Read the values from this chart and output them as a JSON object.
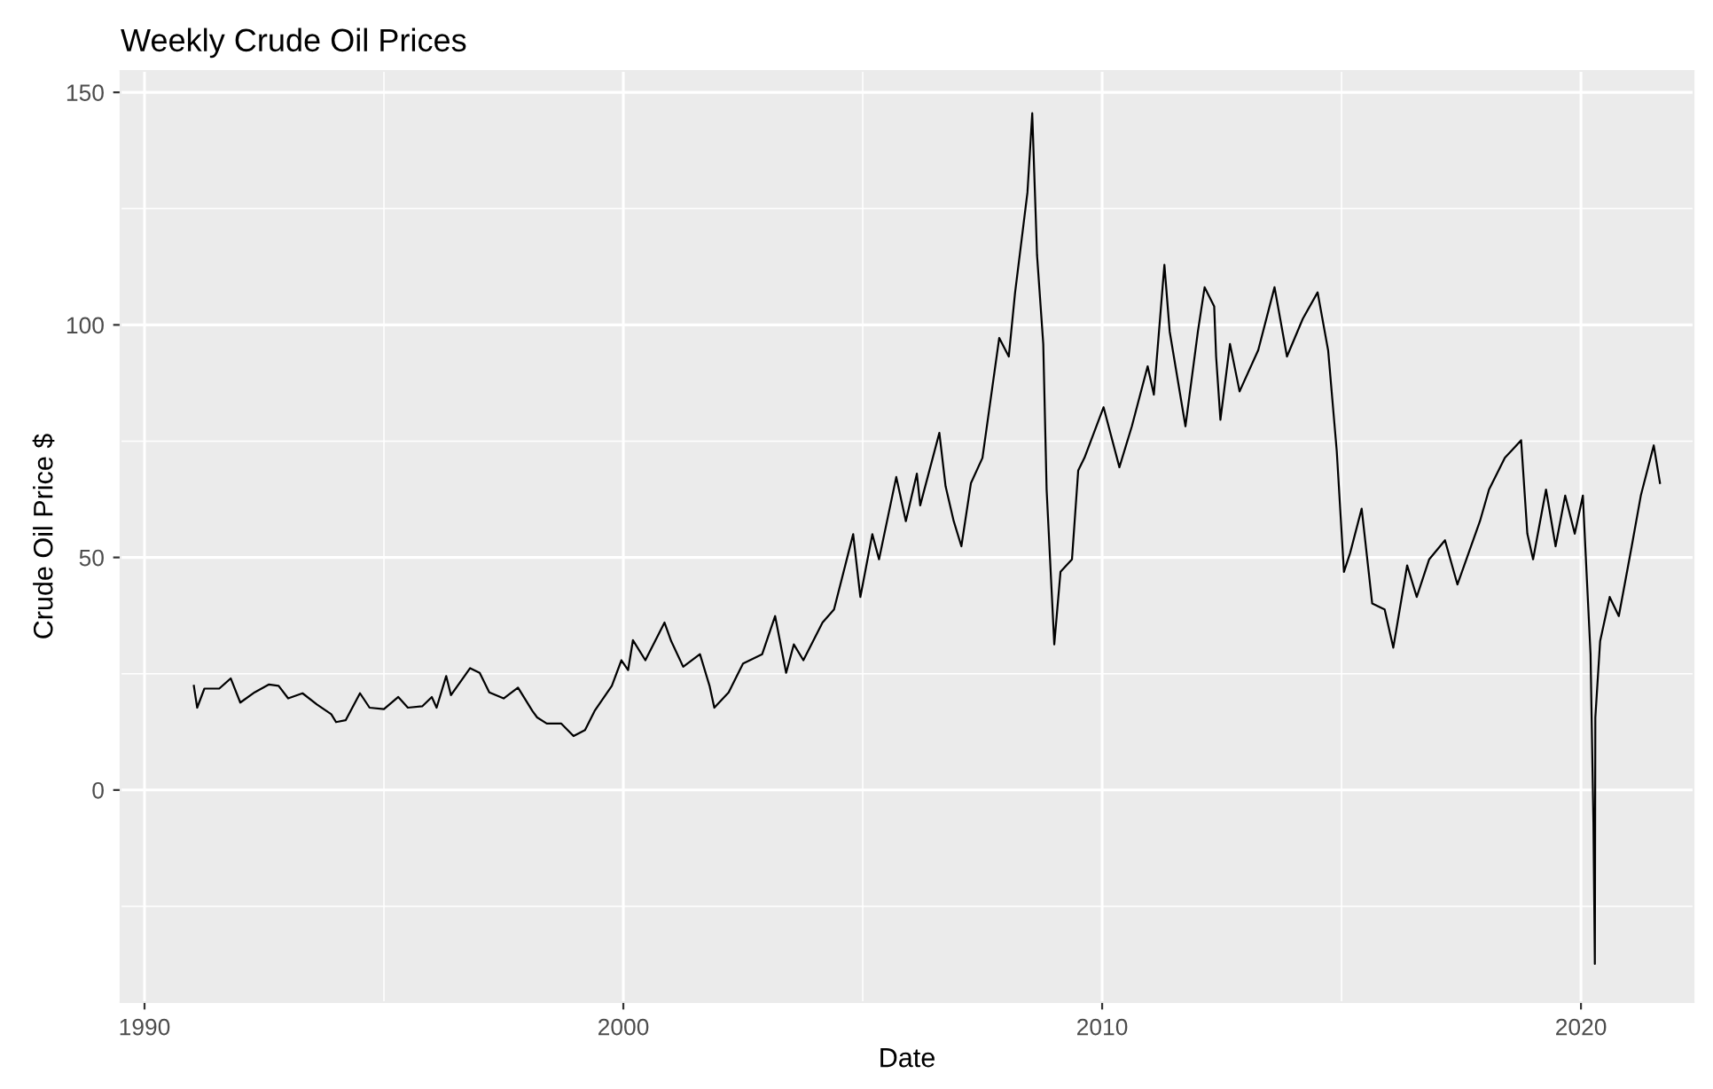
{
  "chart_data": {
    "type": "line",
    "title": "Weekly Crude Oil Prices",
    "xlabel": "Date",
    "ylabel": "Crude Oil Price $",
    "xlim": [
      1989.5,
      2022.35
    ],
    "ylim": [
      -45.6,
      154.6
    ],
    "xticks": [
      1990,
      {
        "value": 1995,
        "label": null
      },
      2000,
      {
        "value": 2005,
        "label": null
      },
      2010,
      {
        "value": 2015,
        "label": null
      },
      2020
    ],
    "yticks": [
      {
        "value": -25,
        "label": null
      },
      0,
      {
        "value": 25,
        "label": null
      },
      50,
      {
        "value": 75,
        "label": null
      },
      100,
      {
        "value": 125,
        "label": null
      },
      150
    ],
    "grid": true,
    "legend": false,
    "marker": "none",
    "line_style": "solid",
    "series": [
      {
        "color": "#000000",
        "x": [
          1991.03,
          1991.1,
          1991.25,
          1991.56,
          1991.8,
          1992.0,
          1992.3,
          1992.6,
          1992.8,
          1993.0,
          1993.3,
          1993.6,
          1993.9,
          1994.0,
          1994.2,
          1994.5,
          1994.7,
          1995.0,
          1995.3,
          1995.5,
          1995.8,
          1996.0,
          1996.1,
          1996.3,
          1996.4,
          1996.8,
          1997.0,
          1997.2,
          1997.5,
          1997.8,
          1998.1,
          1998.2,
          1998.4,
          1998.7,
          1998.96,
          1999.2,
          1999.4,
          1999.76,
          1999.96,
          2000.1,
          2000.2,
          2000.46,
          2000.86,
          2001.0,
          2001.25,
          2001.6,
          2001.8,
          2001.9,
          2002.2,
          2002.5,
          2002.9,
          2003.17,
          2003.4,
          2003.56,
          2003.76,
          2004.16,
          2004.4,
          2004.8,
          2004.95,
          2005.2,
          2005.34,
          2005.7,
          2005.9,
          2006.13,
          2006.2,
          2006.6,
          2006.73,
          2006.9,
          2007.06,
          2007.26,
          2007.5,
          2007.85,
          2008.05,
          2008.18,
          2008.44,
          2008.54,
          2008.64,
          2008.77,
          2008.84,
          2009.0,
          2009.13,
          2009.37,
          2009.5,
          2009.63,
          2010.03,
          2010.36,
          2010.62,
          2010.95,
          2011.08,
          2011.3,
          2011.41,
          2011.74,
          2012.0,
          2012.14,
          2012.34,
          2012.38,
          2012.47,
          2012.67,
          2012.87,
          2013.26,
          2013.6,
          2013.86,
          2014.19,
          2014.5,
          2014.72,
          2014.9,
          2015.05,
          2015.18,
          2015.42,
          2015.64,
          2015.9,
          2016.08,
          2016.37,
          2016.57,
          2016.83,
          2017.16,
          2017.42,
          2017.89,
          2018.08,
          2018.41,
          2018.75,
          2018.88,
          2019.0,
          2019.27,
          2019.47,
          2019.67,
          2019.87,
          2020.04,
          2020.09,
          2020.2,
          2020.26,
          2020.29,
          2020.3,
          2020.4,
          2020.6,
          2020.79,
          2021.06,
          2021.25,
          2021.52,
          2021.65
        ],
        "values": [
          22.4,
          17.7,
          21.8,
          21.8,
          24,
          18.8,
          21,
          22.7,
          22.4,
          19.7,
          20.8,
          18.4,
          16.3,
          14.6,
          15,
          20.8,
          17.7,
          17.4,
          20,
          17.7,
          18,
          20,
          17.7,
          24.5,
          20.4,
          26.2,
          25.2,
          21,
          19.7,
          22,
          17,
          15.6,
          14.3,
          14.3,
          11.6,
          12.9,
          17,
          22.4,
          27.9,
          25.8,
          32.2,
          27.9,
          36,
          32,
          26.5,
          29.2,
          22.4,
          17.7,
          21,
          27.2,
          29.2,
          37.4,
          25.2,
          31.3,
          27.9,
          36,
          38.8,
          55,
          41.5,
          55,
          49.6,
          67.3,
          57.8,
          68,
          61.2,
          76.8,
          65.3,
          57.8,
          52.4,
          66,
          71.4,
          97.2,
          93.2,
          106.8,
          128.5,
          145.5,
          115,
          95.9,
          64.6,
          31.3,
          46.9,
          49.6,
          68.7,
          71.4,
          82.3,
          69.4,
          78.2,
          91.1,
          85,
          112.9,
          98.6,
          78.2,
          98.6,
          108.1,
          104,
          93.2,
          79.6,
          95.9,
          85.7,
          94.6,
          108.1,
          93.2,
          101.3,
          107,
          94.5,
          72.8,
          46.9,
          51,
          60.5,
          40.1,
          38.8,
          30.6,
          48.3,
          41.5,
          49.6,
          53.7,
          44.2,
          57.8,
          64.6,
          71.4,
          75.2,
          55.1,
          49.6,
          64.6,
          52.4,
          63.3,
          55.1,
          63.3,
          52.4,
          29.2,
          -6.8,
          -37.4,
          15.6,
          32,
          41.5,
          37.4,
          52.4,
          63.3,
          74.1,
          66
        ]
      }
    ]
  }
}
